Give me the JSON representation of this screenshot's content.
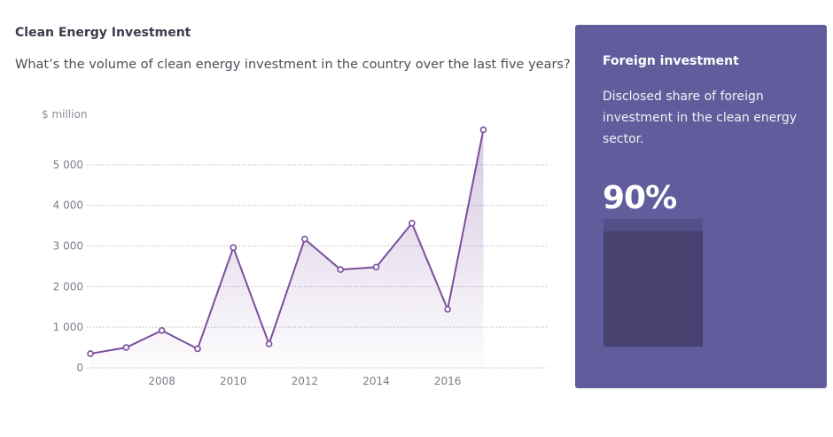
{
  "header": {
    "title": "Clean Energy Investment",
    "question": "What’s the volume of clean energy investment in the country over the last five years?"
  },
  "chart_data": {
    "type": "area",
    "unit_label": "$ million",
    "x": [
      2006,
      2007,
      2008,
      2009,
      2010,
      2011,
      2012,
      2013,
      2014,
      2015,
      2016,
      2017
    ],
    "values": [
      350,
      500,
      920,
      470,
      2960,
      590,
      3170,
      2420,
      2480,
      3560,
      1440,
      5860
    ],
    "xticks": [
      2008,
      2010,
      2012,
      2014,
      2016
    ],
    "xtick_labels": [
      "2008",
      "2010",
      "2012",
      "2014",
      "2016"
    ],
    "yticks": [
      0,
      1000,
      2000,
      3000,
      4000,
      5000
    ],
    "ytick_labels": [
      "0",
      "1 000",
      "2 000",
      "3 000",
      "4 000",
      "5 000"
    ],
    "xlim": [
      2005.9,
      2018.8
    ],
    "ylim": [
      0,
      6000
    ],
    "grid": true,
    "line_color": "#7b4f9d",
    "fill_color": "#7b4f9d",
    "grid_color": "#b9bcc4"
  },
  "panel": {
    "title": "Foreign investment",
    "description": "Disclosed share of foreign investment in the clean energy sector.",
    "value_label": "90%",
    "share": 0.9,
    "background": "#615c9b"
  }
}
